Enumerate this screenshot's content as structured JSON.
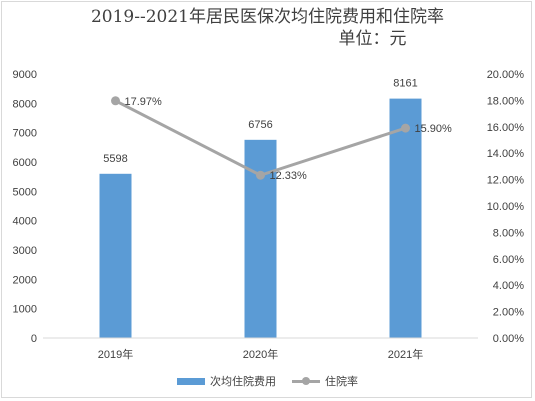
{
  "chart_data": {
    "type": "bar",
    "title_line1": "2019--2021年居民医保次均住院费用和住院率",
    "title_line2": "单位：元",
    "categories": [
      "2019年",
      "2020年",
      "2021年"
    ],
    "left_axis": {
      "ylim": [
        0,
        9000
      ],
      "ticks": [
        "0",
        "1000",
        "2000",
        "3000",
        "4000",
        "5000",
        "6000",
        "7000",
        "8000",
        "9000"
      ]
    },
    "right_axis": {
      "ylim": [
        0,
        20
      ],
      "ticks": [
        "0.00%",
        "2.00%",
        "4.00%",
        "6.00%",
        "8.00%",
        "10.00%",
        "12.00%",
        "14.00%",
        "16.00%",
        "18.00%",
        "20.00%"
      ]
    },
    "series": [
      {
        "name": "次均住院费用",
        "type": "bar",
        "axis": "left",
        "values": [
          5598,
          6756,
          8161
        ],
        "labels": [
          "5598",
          "6756",
          "8161"
        ],
        "color": "#5b9bd5"
      },
      {
        "name": "住院率",
        "type": "line",
        "axis": "right",
        "values": [
          17.97,
          12.33,
          15.9
        ],
        "labels": [
          "17.97%",
          "12.33%",
          "15.90%"
        ],
        "color": "#a5a5a5"
      }
    ],
    "grid": false,
    "legend_position": "bottom"
  }
}
